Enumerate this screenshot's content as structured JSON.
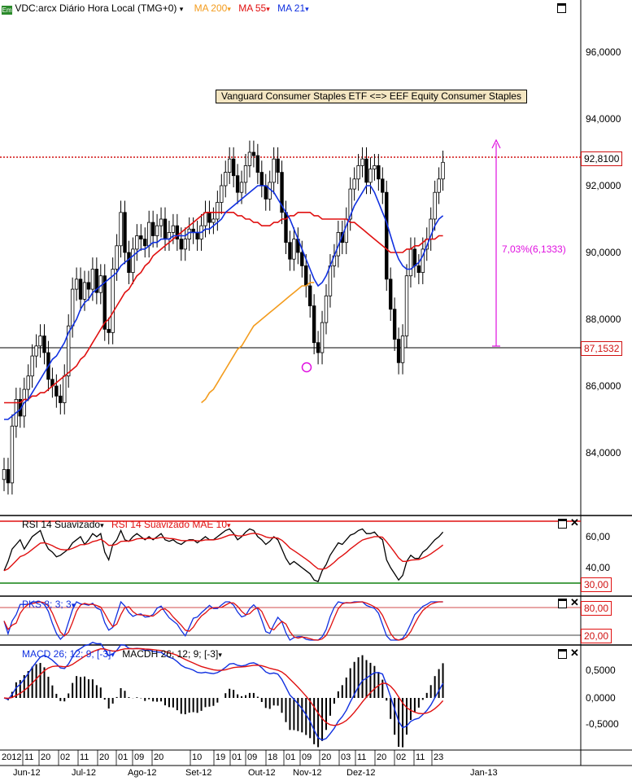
{
  "header": {
    "symbol": "VDC:arcx Diário Hora Local (TMG+0)",
    "ma200": "MA 200",
    "ma55": "MA 55",
    "ma21": "MA 21",
    "dropdown_glyph": "▾"
  },
  "legend_text": "Vanguard Consumer Staples ETF <=> EEF Equity Consumer Staples",
  "price_tags": {
    "current": "92,8100",
    "low_ref": "87,1532"
  },
  "annotation": {
    "range_label": "7,03%(6,1333)"
  },
  "panels": {
    "rsi": {
      "title1": "RSI 14 Suavizado",
      "title2": "RSI 14 Suavizado MAE 10",
      "tag30": "30,00",
      "y60": "60,00",
      "y40": "40,00"
    },
    "pks": {
      "title": "PKS 8; 3; 3",
      "tag80": "80,00",
      "tag20": "20,00"
    },
    "macd": {
      "title1": "MACD 26; 12; 9; [-3]",
      "title2": "MACDH 26; 12; 9; [-3]",
      "y1": "0,5000",
      "y2": "0,0000",
      "y3": "-0,5000"
    }
  },
  "colors": {
    "ma200": "#f39c1e",
    "ma55": "#e01010",
    "ma21": "#1030e0",
    "annotation": "#e010e0",
    "rsi_line": "#000000",
    "pks_k": "#1030e0",
    "pks_d": "#e01010"
  },
  "chart_data": {
    "type": "line",
    "title": "VDC:arcx Diário Hora Local (TMG+0)",
    "price_axis": {
      "ticks": [
        96.0,
        94.0,
        92.0,
        90.0,
        88.0,
        86.0,
        84.0
      ],
      "tick_labels": [
        "96,0000",
        "94,0000",
        "92,0000",
        "90,0000",
        "88,0000",
        "86,0000",
        "84,0000"
      ],
      "ylim": [
        82.2,
        97.5
      ]
    },
    "price_close": [
      83.5,
      83.1,
      84.8,
      85.6,
      85.1,
      85.9,
      86.3,
      86.9,
      87.2,
      87.5,
      87.0,
      86.2,
      86.0,
      85.7,
      85.5,
      86.3,
      87.8,
      88.9,
      89.2,
      88.6,
      89.1,
      88.9,
      89.5,
      88.8,
      89.3,
      87.7,
      87.6,
      89.5,
      90.2,
      91.2,
      90.0,
      89.4,
      90.1,
      90.5,
      90.4,
      90.2,
      90.9,
      90.5,
      90.8,
      91.0,
      90.4,
      90.6,
      90.8,
      90.4,
      90.1,
      90.4,
      90.7,
      90.6,
      90.4,
      90.8,
      91.2,
      90.9,
      91.0,
      91.5,
      92.0,
      92.4,
      92.8,
      92.3,
      91.8,
      92.1,
      92.6,
      93.0,
      92.9,
      92.4,
      92.0,
      91.6,
      92.1,
      92.8,
      92.4,
      91.2,
      90.3,
      89.8,
      90.4,
      90.0,
      89.6,
      89.0,
      88.4,
      87.3,
      87.0,
      87.9,
      88.7,
      89.6,
      89.9,
      90.6,
      90.3,
      91.0,
      91.9,
      92.2,
      92.6,
      92.8,
      92.1,
      92.5,
      92.6,
      92.2,
      91.8,
      89.2,
      88.3,
      87.4,
      86.7,
      87.5,
      89.3,
      90.1,
      89.6,
      89.4,
      90.1,
      90.4,
      91.0,
      91.8,
      92.2,
      92.7
    ],
    "ma21": [
      85.0,
      85.0,
      85.1,
      85.2,
      85.3,
      85.5,
      85.6,
      85.8,
      86.0,
      86.2,
      86.4,
      86.6,
      86.8,
      86.9,
      87.1,
      87.3,
      87.6,
      87.8,
      88.0,
      88.3,
      88.5,
      88.6,
      88.8,
      88.9,
      89.0,
      89.1,
      89.2,
      89.3,
      89.4,
      89.6,
      89.7,
      89.8,
      89.9,
      90.0,
      90.1,
      90.1,
      90.2,
      90.3,
      90.3,
      90.4,
      90.4,
      90.4,
      90.5,
      90.5,
      90.5,
      90.5,
      90.6,
      90.6,
      90.6,
      90.6,
      90.7,
      90.7,
      90.8,
      90.9,
      91.0,
      91.2,
      91.3,
      91.4,
      91.5,
      91.6,
      91.7,
      91.8,
      91.9,
      92.0,
      92.0,
      92.0,
      91.9,
      91.8,
      91.6,
      91.4,
      91.2,
      91.0,
      90.7,
      90.4,
      90.1,
      89.8,
      89.5,
      89.2,
      89.0,
      89.1,
      89.3,
      89.6,
      89.9,
      90.2,
      90.5,
      90.8,
      91.1,
      91.4,
      91.6,
      91.8,
      92.0,
      92.0,
      91.8,
      91.5,
      91.2,
      90.9,
      90.5,
      90.1,
      89.8,
      89.6,
      89.5,
      89.5,
      89.6,
      89.7,
      89.9,
      90.2,
      90.5,
      90.8,
      91.0,
      91.1
    ],
    "ma55": [
      85.5,
      85.5,
      85.5,
      85.5,
      85.5,
      85.6,
      85.6,
      85.7,
      85.7,
      85.8,
      85.8,
      85.9,
      86.0,
      86.1,
      86.2,
      86.3,
      86.4,
      86.5,
      86.6,
      86.8,
      86.9,
      87.1,
      87.3,
      87.5,
      87.7,
      87.9,
      88.0,
      88.2,
      88.4,
      88.6,
      88.8,
      88.9,
      89.1,
      89.3,
      89.4,
      89.6,
      89.7,
      89.9,
      90.0,
      90.1,
      90.2,
      90.3,
      90.4,
      90.5,
      90.6,
      90.7,
      90.8,
      90.9,
      91.0,
      91.1,
      91.2,
      91.2,
      91.2,
      91.2,
      91.2,
      91.2,
      91.2,
      91.2,
      91.1,
      91.1,
      91.0,
      91.0,
      90.9,
      90.9,
      90.8,
      90.8,
      90.8,
      90.9,
      90.9,
      91.0,
      91.0,
      91.1,
      91.1,
      91.2,
      91.2,
      91.2,
      91.2,
      91.1,
      91.1,
      91.0,
      91.0,
      91.0,
      91.0,
      91.0,
      91.0,
      91.0,
      90.9,
      90.9,
      90.8,
      90.7,
      90.6,
      90.5,
      90.4,
      90.3,
      90.2,
      90.1,
      90.0,
      90.0,
      90.0,
      90.0,
      90.1,
      90.1,
      90.2,
      90.2,
      90.3,
      90.4,
      90.4,
      90.4,
      90.5,
      90.5
    ],
    "ma200": [
      85.5,
      85.6,
      85.8,
      85.9,
      86.1,
      86.3,
      86.5,
      86.7,
      86.9,
      87.1,
      87.2,
      87.4,
      87.6,
      87.8,
      87.9,
      88.0,
      88.1,
      88.2,
      88.3,
      88.4,
      88.5,
      88.6,
      88.7,
      88.8,
      88.9,
      89.0,
      89.0,
      89.1,
      89.1
    ],
    "ma200_start_index": 49,
    "rsi": {
      "ylim": [
        20,
        70
      ],
      "levels": [
        60,
        40
      ],
      "line_30": 30,
      "values": [
        38,
        44,
        52,
        55,
        58,
        52,
        56,
        60,
        62,
        64,
        57,
        52,
        50,
        47,
        48,
        50,
        52,
        56,
        58,
        60,
        55,
        58,
        62,
        60,
        62,
        50,
        45,
        55,
        58,
        64,
        58,
        57,
        60,
        62,
        60,
        58,
        60,
        58,
        60,
        62,
        58,
        57,
        58,
        56,
        55,
        57,
        58,
        58,
        56,
        58,
        60,
        58,
        58,
        60,
        62,
        64,
        65,
        62,
        58,
        60,
        63,
        65,
        64,
        60,
        58,
        55,
        57,
        60,
        58,
        52,
        46,
        42,
        44,
        42,
        40,
        38,
        36,
        32,
        31,
        38,
        42,
        48,
        52,
        56,
        55,
        58,
        61,
        62,
        64,
        65,
        62,
        62,
        63,
        60,
        58,
        45,
        40,
        36,
        32,
        35,
        44,
        48,
        46,
        46,
        50,
        52,
        55,
        58,
        60,
        63
      ]
    },
    "pks": {
      "ylim": [
        0,
        100
      ],
      "levels": [
        80,
        20
      ]
    },
    "macd": {
      "ylim": [
        -1.0,
        1.0
      ],
      "ticks": [
        0.5,
        0.0,
        -0.5
      ]
    },
    "date_row1": [
      "2012",
      "11",
      "20",
      "02",
      "11",
      "20",
      "01",
      "09",
      "20",
      "10",
      "19",
      "01",
      "09",
      "18",
      "01",
      "09",
      "20",
      "03",
      "11",
      "20",
      "02",
      "11",
      "23"
    ],
    "date_row2": [
      "Jun-12",
      "Jul-12",
      "Ago-12",
      "Set-12",
      "Out-12",
      "Nov-12",
      "Dez-12",
      "Jan-13"
    ]
  }
}
